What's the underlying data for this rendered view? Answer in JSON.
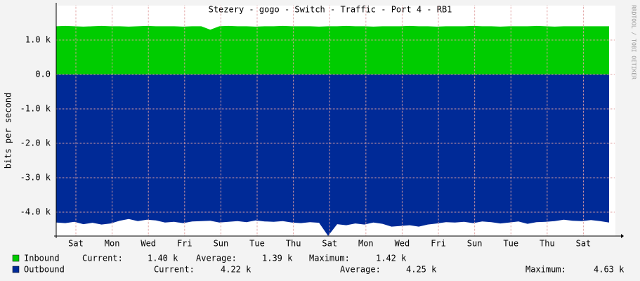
{
  "chart_data": {
    "type": "area",
    "title": "Stezery - gogo - Switch - Traffic - Port  4 - RB1",
    "ylabel": "bits per second",
    "watermark": "RRDTOOL / TOBI OETIKER",
    "x": [
      0,
      0.5,
      1,
      1.5,
      2,
      2.5,
      3,
      3.5,
      4,
      4.5,
      5,
      5.5,
      6,
      6.5,
      7,
      7.5,
      8,
      8.5,
      9,
      9.5,
      10,
      10.5,
      11,
      11.5,
      12,
      12.5,
      13,
      13.5,
      14,
      14.5,
      15,
      15.5,
      16,
      16.5,
      17,
      17.5,
      18,
      18.5,
      19,
      19.5,
      20,
      20.5,
      21,
      21.5,
      22,
      22.5,
      23,
      23.5,
      24,
      24.5,
      25,
      25.5,
      26,
      26.5,
      27,
      27.5,
      28,
      28.5,
      29,
      29.5,
      30,
      30.5
    ],
    "xlim": [
      0,
      30.85
    ],
    "xticks": [
      {
        "value": 1.085,
        "label": "Sat"
      },
      {
        "value": 3.085,
        "label": "Mon"
      },
      {
        "value": 5.085,
        "label": "Wed"
      },
      {
        "value": 7.085,
        "label": "Fri"
      },
      {
        "value": 9.085,
        "label": "Sun"
      },
      {
        "value": 11.085,
        "label": "Tue"
      },
      {
        "value": 13.085,
        "label": "Thu"
      },
      {
        "value": 15.085,
        "label": "Sat"
      },
      {
        "value": 17.085,
        "label": "Mon"
      },
      {
        "value": 19.085,
        "label": "Wed"
      },
      {
        "value": 21.085,
        "label": "Fri"
      },
      {
        "value": 23.085,
        "label": "Sun"
      },
      {
        "value": 25.085,
        "label": "Tue"
      },
      {
        "value": 27.085,
        "label": "Thu"
      },
      {
        "value": 29.085,
        "label": "Sat"
      }
    ],
    "ylim": [
      -4694,
      2000
    ],
    "yticks": [
      {
        "value": 1000,
        "label": "1.0 k"
      },
      {
        "value": 0,
        "label": "0.0"
      },
      {
        "value": -1000,
        "label": "-1.0 k"
      },
      {
        "value": -2000,
        "label": "-2.0 k"
      },
      {
        "value": -3000,
        "label": "-3.0 k"
      },
      {
        "value": -4000,
        "label": "-4.0 k"
      }
    ],
    "grid": true,
    "series": [
      {
        "name": "Inbound",
        "color": "#00cc00",
        "values": [
          1400,
          1410,
          1400,
          1390,
          1400,
          1410,
          1400,
          1400,
          1390,
          1400,
          1410,
          1400,
          1400,
          1400,
          1390,
          1400,
          1400,
          1300,
          1400,
          1410,
          1400,
          1400,
          1390,
          1400,
          1400,
          1410,
          1400,
          1400,
          1400,
          1390,
          1400,
          1400,
          1410,
          1400,
          1400,
          1390,
          1400,
          1400,
          1400,
          1410,
          1400,
          1400,
          1390,
          1400,
          1400,
          1400,
          1410,
          1400,
          1400,
          1390,
          1400,
          1400,
          1400,
          1410,
          1400,
          1390,
          1400,
          1400,
          1400,
          1400,
          1400,
          1400
        ],
        "stats": [
          [
            "Current:",
            "1.40 k"
          ],
          [
            "Average:",
            "1.39 k"
          ],
          [
            "Maximum:",
            "1.42 k"
          ]
        ]
      },
      {
        "name": "Outbound",
        "color": "#002a97",
        "values": [
          -4300,
          -4320,
          -4280,
          -4350,
          -4310,
          -4360,
          -4330,
          -4250,
          -4200,
          -4260,
          -4220,
          -4240,
          -4300,
          -4280,
          -4320,
          -4270,
          -4260,
          -4250,
          -4300,
          -4280,
          -4260,
          -4290,
          -4240,
          -4270,
          -4280,
          -4260,
          -4300,
          -4320,
          -4290,
          -4310,
          -4690,
          -4350,
          -4380,
          -4330,
          -4360,
          -4300,
          -4340,
          -4420,
          -4400,
          -4380,
          -4420,
          -4360,
          -4330,
          -4290,
          -4300,
          -4280,
          -4320,
          -4270,
          -4290,
          -4330,
          -4300,
          -4270,
          -4340,
          -4290,
          -4280,
          -4260,
          -4220,
          -4250,
          -4260,
          -4230,
          -4260,
          -4300
        ],
        "stats": [
          [
            "Current:",
            "4.22 k"
          ],
          [
            "Average:",
            "4.25 k"
          ],
          [
            "Maximum:",
            "4.63 k"
          ]
        ]
      }
    ]
  }
}
